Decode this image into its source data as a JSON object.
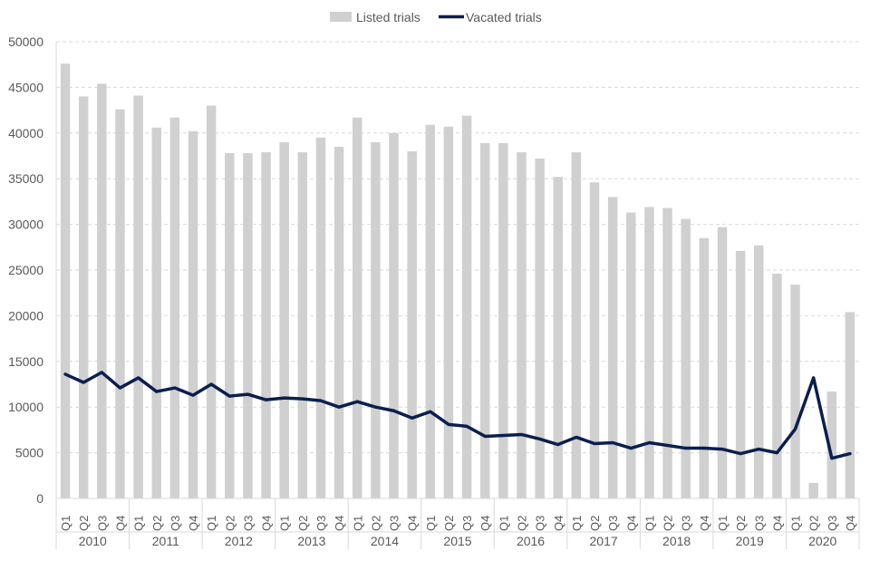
{
  "chart_data": {
    "type": "bar",
    "yticks": [
      "0",
      "5000",
      "10000",
      "15000",
      "20000",
      "25000",
      "30000",
      "35000",
      "40000",
      "45000",
      "50000"
    ],
    "ylim": [
      0,
      50000
    ],
    "quarters": [
      "Q1",
      "Q2",
      "Q3",
      "Q4"
    ],
    "years": [
      "2010",
      "2011",
      "2012",
      "2013",
      "2014",
      "2015",
      "2016",
      "2017",
      "2018",
      "2019",
      "2020"
    ],
    "legend_position": "top",
    "grid": true,
    "series": [
      {
        "name": "Listed trials",
        "kind": "bar",
        "color": "#d0d0d0",
        "values": [
          47600,
          44000,
          45400,
          42600,
          44100,
          40600,
          41700,
          40200,
          43000,
          37800,
          37800,
          37900,
          39000,
          37900,
          39500,
          38500,
          41700,
          39000,
          40000,
          38000,
          40900,
          40700,
          41900,
          38900,
          38900,
          37900,
          37200,
          35200,
          37900,
          34600,
          33000,
          31300,
          31900,
          31800,
          30600,
          28500,
          29700,
          27100,
          27700,
          24600,
          23400,
          1700,
          11700,
          20400
        ]
      },
      {
        "name": "Vacated trials",
        "kind": "line",
        "color": "#0b1f4f",
        "values": [
          13600,
          12700,
          13800,
          12100,
          13200,
          11700,
          12100,
          11300,
          12500,
          11200,
          11400,
          10800,
          11000,
          10900,
          10700,
          10000,
          10600,
          10000,
          9600,
          8800,
          9500,
          8100,
          7900,
          6800,
          6900,
          7000,
          6500,
          5900,
          6700,
          6000,
          6100,
          5500,
          6100,
          5800,
          5500,
          5500,
          5400,
          4900,
          5400,
          5000,
          7600,
          13200,
          4400,
          4900
        ]
      }
    ]
  }
}
